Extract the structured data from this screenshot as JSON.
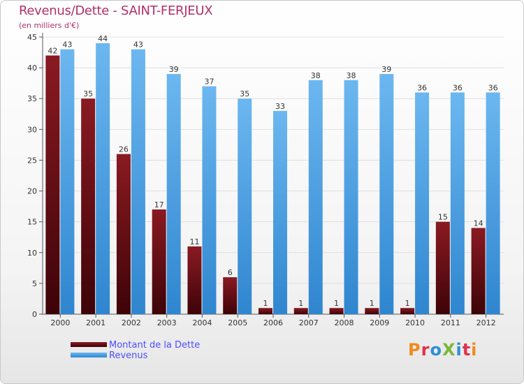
{
  "chart_data": {
    "type": "bar",
    "title": "Revenus/Dette - SAINT-FERJEUX",
    "subtitle": "(en milliers d'€)",
    "xlabel": "",
    "ylabel": "",
    "ylim": [
      0,
      45
    ],
    "yticks": [
      "0",
      "5",
      "10",
      "15",
      "20",
      "25",
      "30",
      "35",
      "40",
      "45"
    ],
    "grid": true,
    "legend_position": "bottom-left",
    "categories": [
      "2000",
      "2001",
      "2002",
      "2003",
      "2004",
      "2005",
      "2006",
      "2007",
      "2008",
      "2009",
      "2010",
      "2011",
      "2012"
    ],
    "series": [
      {
        "name": "Montant de la Dette",
        "color": "#6e0f17",
        "values": [
          42,
          35,
          26,
          17,
          11,
          6,
          1,
          1,
          1,
          1,
          1,
          15,
          14
        ],
        "labels": [
          "42",
          "35",
          "26",
          "17",
          "11",
          "6",
          "1",
          "1",
          "1",
          "1",
          "1",
          "15",
          "14"
        ]
      },
      {
        "name": "Revenus",
        "color": "#3b95dc",
        "values": [
          43,
          44,
          43,
          39,
          37,
          35,
          33,
          38,
          38,
          39,
          36,
          36,
          36
        ],
        "labels": [
          "43",
          "44",
          "43",
          "39",
          "37",
          "35",
          "33",
          "38",
          "38",
          "39",
          "36",
          "36",
          "36"
        ]
      }
    ]
  },
  "legend": {
    "items": [
      {
        "label": "Montant de la Dette",
        "color": "#6e0f17"
      },
      {
        "label": "Revenus",
        "color": "#3b95dc"
      }
    ]
  },
  "logo": {
    "text": "ProXiti",
    "letter_colors": [
      "#f08a1c",
      "#e2304a",
      "#2c8fd6",
      "#7ab83a",
      "#2c8fd6",
      "#e2304a",
      "#f08a1c"
    ]
  }
}
